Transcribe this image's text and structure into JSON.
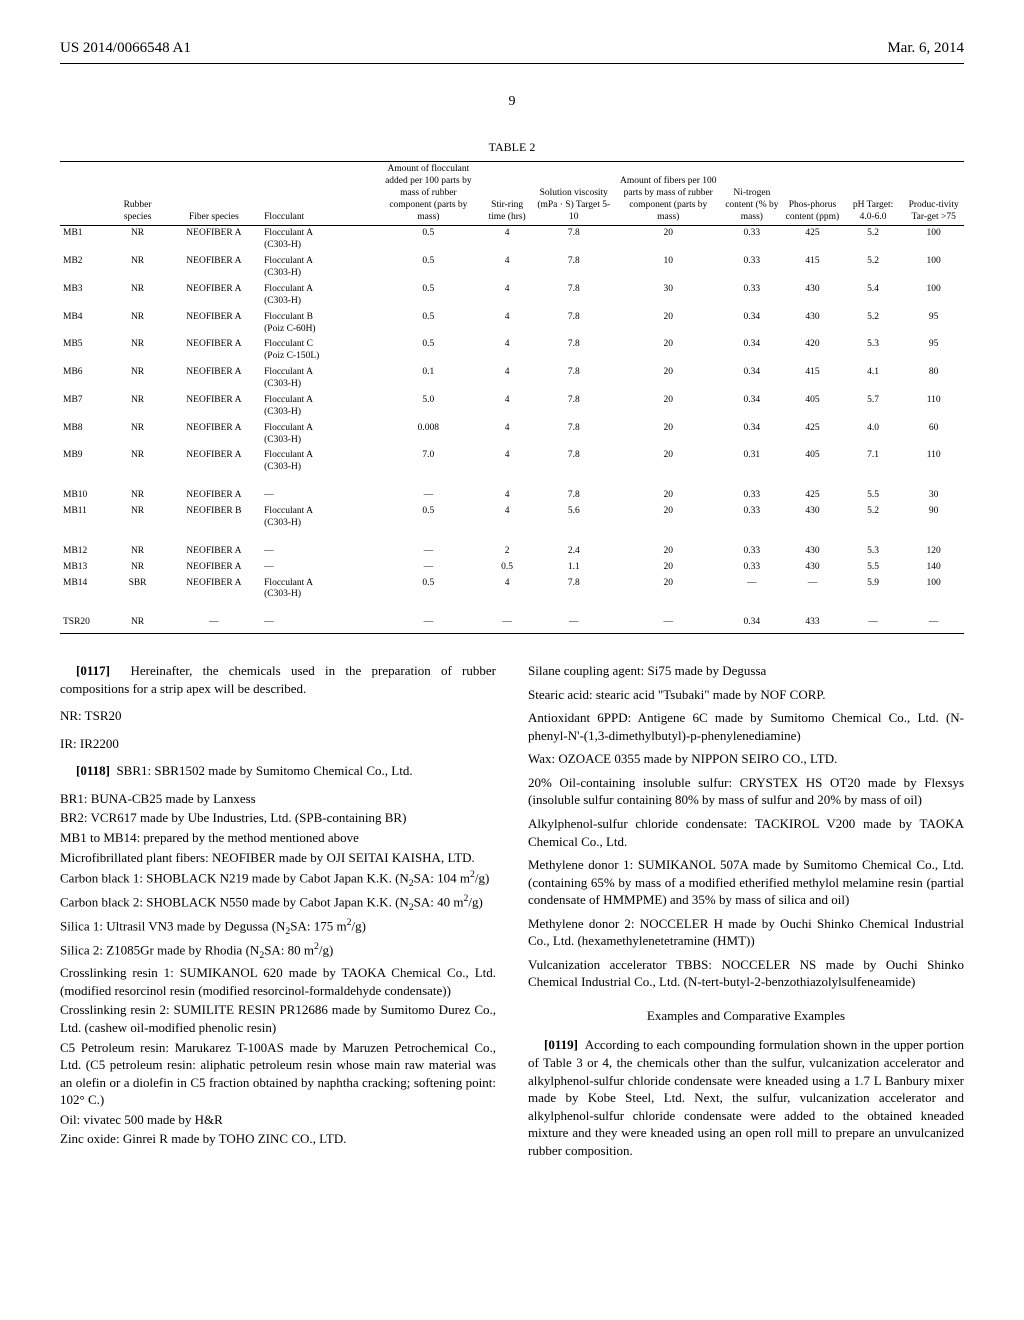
{
  "header": {
    "doc_number": "US 2014/0066548 A1",
    "date": "Mar. 6, 2014",
    "page_number": "9"
  },
  "table": {
    "title": "TABLE 2",
    "columns": [
      "",
      "Rubber species",
      "Fiber species",
      "Flocculant",
      "Amount of flocculant added per 100 parts by mass of rubber component (parts by mass)",
      "Stir-ring time (hrs)",
      "Solution viscosity (mPa · S) Target 5-10",
      "Amount of fibers per 100 parts by mass of rubber component (parts by mass)",
      "Ni-trogen content (% by mass)",
      "Phos-phorus content (ppm)",
      "pH Target: 4.0-6.0",
      "Produc-tivity Tar-get >75"
    ],
    "groups": [
      [
        [
          "MB1",
          "NR",
          "NEOFIBER A",
          "Flocculant A (C303-H)",
          "0.5",
          "4",
          "7.8",
          "20",
          "0.33",
          "425",
          "5.2",
          "100"
        ],
        [
          "MB2",
          "NR",
          "NEOFIBER A",
          "Flocculant A (C303-H)",
          "0.5",
          "4",
          "7.8",
          "10",
          "0.33",
          "415",
          "5.2",
          "100"
        ],
        [
          "MB3",
          "NR",
          "NEOFIBER A",
          "Flocculant A (C303-H)",
          "0.5",
          "4",
          "7.8",
          "30",
          "0.33",
          "430",
          "5.4",
          "100"
        ],
        [
          "MB4",
          "NR",
          "NEOFIBER A",
          "Flocculant B (Poiz C-60H)",
          "0.5",
          "4",
          "7.8",
          "20",
          "0.34",
          "430",
          "5.2",
          "95"
        ],
        [
          "MB5",
          "NR",
          "NEOFIBER A",
          "Flocculant C (Poiz C-150L)",
          "0.5",
          "4",
          "7.8",
          "20",
          "0.34",
          "420",
          "5.3",
          "95"
        ],
        [
          "MB6",
          "NR",
          "NEOFIBER A",
          "Flocculant A (C303-H)",
          "0.1",
          "4",
          "7.8",
          "20",
          "0.34",
          "415",
          "4.1",
          "80"
        ],
        [
          "MB7",
          "NR",
          "NEOFIBER A",
          "Flocculant A (C303-H)",
          "5.0",
          "4",
          "7.8",
          "20",
          "0.34",
          "405",
          "5.7",
          "110"
        ],
        [
          "MB8",
          "NR",
          "NEOFIBER A",
          "Flocculant A (C303-H)",
          "0.008",
          "4",
          "7.8",
          "20",
          "0.34",
          "425",
          "4.0",
          "60"
        ],
        [
          "MB9",
          "NR",
          "NEOFIBER A",
          "Flocculant A (C303-H)",
          "7.0",
          "4",
          "7.8",
          "20",
          "0.31",
          "405",
          "7.1",
          "110"
        ]
      ],
      [
        [
          "MB10",
          "NR",
          "NEOFIBER A",
          "—",
          "—",
          "4",
          "7.8",
          "20",
          "0.33",
          "425",
          "5.5",
          "30"
        ],
        [
          "MB11",
          "NR",
          "NEOFIBER B",
          "Flocculant A (C303-H)",
          "0.5",
          "4",
          "5.6",
          "20",
          "0.33",
          "430",
          "5.2",
          "90"
        ]
      ],
      [
        [
          "MB12",
          "NR",
          "NEOFIBER A",
          "—",
          "—",
          "2",
          "2.4",
          "20",
          "0.33",
          "430",
          "5.3",
          "120"
        ],
        [
          "MB13",
          "NR",
          "NEOFIBER A",
          "—",
          "—",
          "0.5",
          "1.1",
          "20",
          "0.33",
          "430",
          "5.5",
          "140"
        ],
        [
          "MB14",
          "SBR",
          "NEOFIBER A",
          "Flocculant A (C303-H)",
          "0.5",
          "4",
          "7.8",
          "20",
          "—",
          "—",
          "5.9",
          "100"
        ]
      ],
      [
        [
          "TSR20",
          "NR",
          "—",
          "—",
          "—",
          "—",
          "—",
          "—",
          "0.34",
          "433",
          "—",
          "—"
        ]
      ]
    ]
  },
  "left_col": {
    "p0117": "Hereinafter, the chemicals used in the preparation of rubber compositions for a strip apex will be described.",
    "nr": "NR: TSR20",
    "ir": "IR: IR2200",
    "p0118": "SBR1: SBR1502 made by Sumitomo Chemical Co., Ltd.",
    "lines": [
      "BR1: BUNA-CB25 made by Lanxess",
      "BR2: VCR617 made by Ube Industries, Ltd. (SPB-containing BR)",
      "MB1 to MB14: prepared by the method mentioned above",
      "Microfibrillated plant fibers: NEOFIBER made by OJI SEITAI KAISHA, LTD.",
      "Carbon black 1: SHOBLACK N219 made by Cabot Japan K.K. (N₂SA: 104 m²/g)",
      "Carbon black 2: SHOBLACK N550 made by Cabot Japan K.K. (N₂SA: 40 m²/g)",
      "Silica 1: Ultrasil VN3 made by Degussa (N₂SA: 175 m²/g)",
      "Silica 2: Z1085Gr made by Rhodia (N₂SA: 80 m²/g)",
      "Crosslinking resin 1: SUMIKANOL 620 made by TAOKA Chemical Co., Ltd. (modified resorcinol resin (modified resorcinol-formaldehyde condensate))",
      "Crosslinking resin 2: SUMILITE RESIN PR12686 made by Sumitomo Durez Co., Ltd. (cashew oil-modified phenolic resin)",
      "C5 Petroleum resin: Marukarez T-100AS made by Maruzen Petrochemical Co., Ltd. (C5 petroleum resin: aliphatic petroleum resin whose main raw material was an olefin or a diolefin in C5 fraction obtained by naphtha cracking; softening point: 102° C.)",
      "Oil: vivatec 500 made by H&R",
      "Zinc oxide: Ginrei R made by TOHO ZINC CO., LTD."
    ]
  },
  "right_col": {
    "lines_top": [
      "Silane coupling agent: Si75 made by Degussa",
      "Stearic acid: stearic acid \"Tsubaki\" made by NOF CORP.",
      "Antioxidant 6PPD: Antigene 6C made by Sumitomo Chemical Co., Ltd. (N-phenyl-N'-(1,3-dimethylbutyl)-p-phenylenediamine)",
      "Wax: OZOACE 0355 made by NIPPON SEIRO CO., LTD.",
      "20% Oil-containing insoluble sulfur: CRYSTEX HS OT20 made by Flexsys (insoluble sulfur containing 80% by mass of sulfur and 20% by mass of oil)",
      "Alkylphenol-sulfur chloride condensate: TACKIROL V200 made by TAOKA Chemical Co., Ltd.",
      "Methylene donor 1: SUMIKANOL 507A made by Sumitomo Chemical Co., Ltd. (containing 65% by mass of a modified etherified methylol melamine resin (partial condensate of HMMPME) and 35% by mass of silica and oil)",
      "Methylene donor 2: NOCCELER H made by Ouchi Shinko Chemical Industrial Co., Ltd. (hexamethylenetetramine (HMT))",
      "Vulcanization accelerator TBBS: NOCCELER NS made by Ouchi Shinko Chemical Industrial Co., Ltd. (N-tert-butyl-2-benzothiazolylsulfeneamide)"
    ],
    "examples_head": "Examples and Comparative Examples",
    "p0119": "According to each compounding formulation shown in the upper portion of Table 3 or 4, the chemicals other than the sulfur, vulcanization accelerator and alkylphenol-sulfur chloride condensate were kneaded using a 1.7 L Banbury mixer made by Kobe Steel, Ltd. Next, the sulfur, vulcanization accelerator and alkylphenol-sulfur chloride condensate were added to the obtained kneaded mixture and they were kneaded using an open roll mill to prepare an unvulcanized rubber composition."
  }
}
